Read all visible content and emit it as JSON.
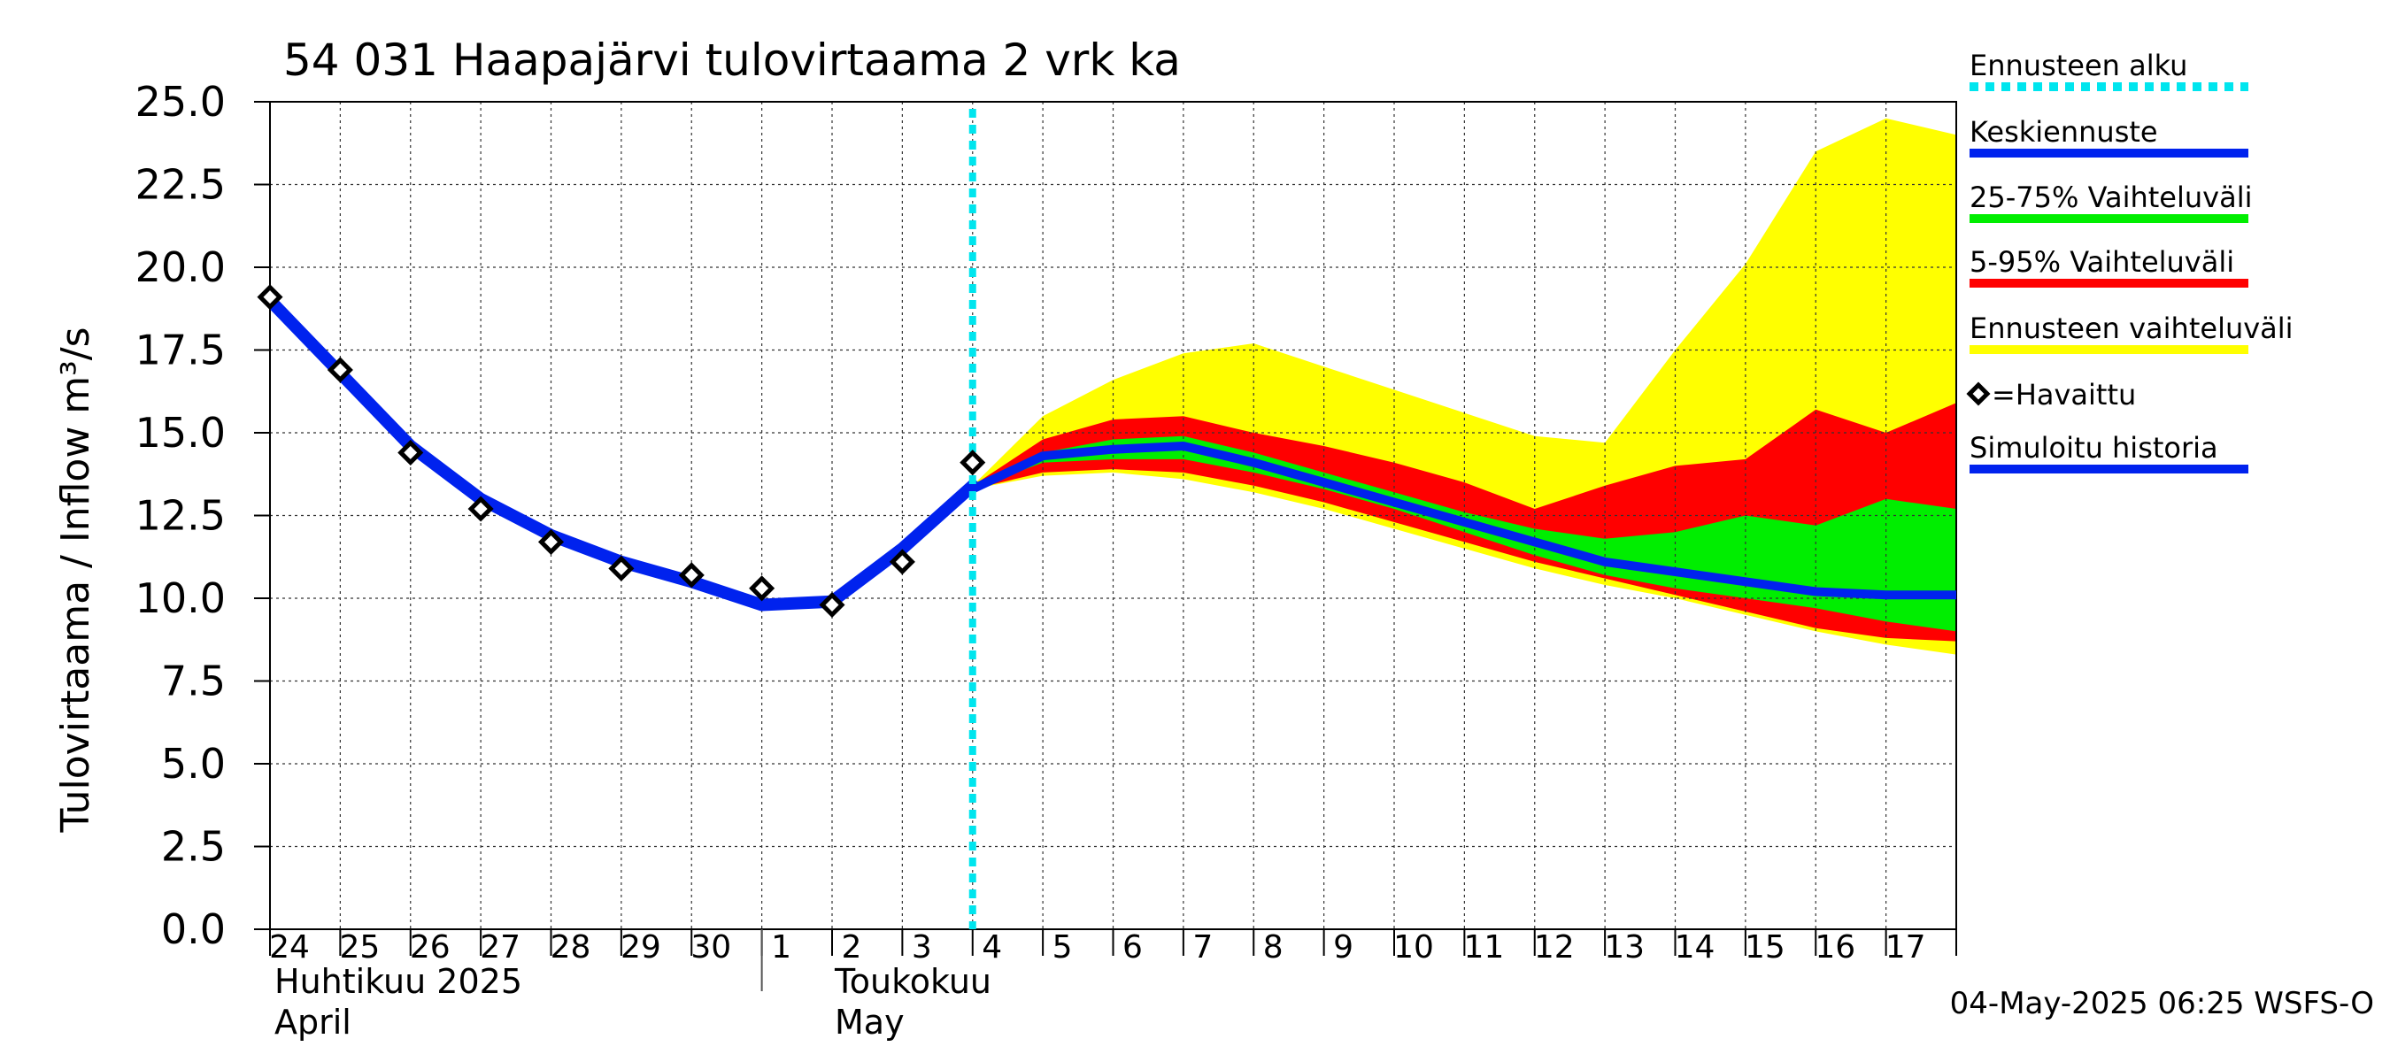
{
  "chart_data": {
    "type": "area",
    "title": "54 031 Haapajärvi tulovirtaama 2 vrk ka",
    "ylabel": "Tulovirtaama / Inflow   m³/s",
    "ylim": [
      0,
      25
    ],
    "yticks": [
      "0.0",
      "2.5",
      "5.0",
      "7.5",
      "10.0",
      "12.5",
      "15.0",
      "17.5",
      "20.0",
      "22.5",
      "25.0"
    ],
    "xlim": [
      0,
      24
    ],
    "day_labels": [
      "24",
      "25",
      "26",
      "27",
      "28",
      "29",
      "30",
      "1",
      "2",
      "3",
      "4",
      "5",
      "6",
      "7",
      "8",
      "9",
      "10",
      "11",
      "12",
      "13",
      "14",
      "15",
      "16",
      "17"
    ],
    "month_labels": {
      "april_fi": "Huhtikuu  2025",
      "april_en": "April",
      "may_fi": "Toukokuu",
      "may_en": "May"
    },
    "month_boundary_x": 7,
    "forecast_start_x": 10,
    "grid": true,
    "legend_position": "right",
    "legend": [
      {
        "key": "start",
        "label": "Ennusteen alku",
        "color": "#00e5ee",
        "style": "dotted"
      },
      {
        "key": "mean",
        "label": "Keskiennuste",
        "color": "#0022ee"
      },
      {
        "key": "p25_75",
        "label": "25-75% Vaihteluväli",
        "color": "#00ee00"
      },
      {
        "key": "p5_95",
        "label": "5-95% Vaihteluväli",
        "color": "#ff0000"
      },
      {
        "key": "range",
        "label": "Ennusteen vaihteluväli",
        "color": "#ffff00"
      },
      {
        "key": "observed",
        "label": "=Havaittu",
        "color": "#000000",
        "style": "diamond"
      },
      {
        "key": "sim",
        "label": "Simuloitu historia",
        "color": "#0022ee"
      }
    ],
    "observed": {
      "x": [
        0,
        1,
        2,
        3,
        4,
        5,
        6,
        7,
        8,
        9,
        10
      ],
      "y": [
        19.1,
        16.9,
        14.4,
        12.7,
        11.7,
        10.9,
        10.7,
        10.3,
        9.8,
        11.1,
        14.1
      ]
    },
    "simulated_history": {
      "x": [
        0,
        1,
        2,
        3,
        4,
        5,
        6,
        7,
        8,
        9,
        10
      ],
      "y": [
        19.0,
        16.8,
        14.6,
        13.0,
        11.9,
        11.1,
        10.5,
        9.8,
        9.9,
        11.5,
        13.4
      ]
    },
    "forecast": {
      "x": [
        10,
        11,
        12,
        13,
        14,
        15,
        16,
        17,
        18,
        19,
        20,
        21,
        22,
        23,
        24
      ],
      "range_max": [
        13.4,
        15.5,
        16.6,
        17.4,
        17.7,
        17.0,
        16.3,
        15.6,
        14.9,
        14.7,
        17.5,
        20.1,
        23.5,
        24.5,
        24.0
      ],
      "range_min": [
        13.3,
        13.7,
        13.8,
        13.6,
        13.2,
        12.7,
        12.1,
        11.5,
        10.9,
        10.4,
        10.0,
        9.5,
        9.0,
        8.6,
        8.3
      ],
      "p95": [
        13.4,
        14.8,
        15.4,
        15.5,
        15.0,
        14.6,
        14.1,
        13.5,
        12.7,
        13.4,
        14.0,
        14.2,
        15.7,
        15.0,
        15.9
      ],
      "p5": [
        13.3,
        13.8,
        13.9,
        13.8,
        13.4,
        12.9,
        12.3,
        11.7,
        11.1,
        10.6,
        10.1,
        9.6,
        9.1,
        8.8,
        8.7
      ],
      "p75": [
        13.4,
        14.4,
        14.8,
        14.9,
        14.4,
        13.8,
        13.2,
        12.6,
        12.1,
        11.8,
        12.0,
        12.5,
        12.2,
        13.0,
        12.7
      ],
      "p25": [
        13.3,
        14.1,
        14.2,
        14.2,
        13.8,
        13.3,
        12.7,
        12.0,
        11.3,
        10.7,
        10.3,
        10.0,
        9.7,
        9.3,
        9.0
      ],
      "mean": [
        13.3,
        14.3,
        14.5,
        14.6,
        14.1,
        13.5,
        12.9,
        12.3,
        11.7,
        11.1,
        10.8,
        10.5,
        10.2,
        10.1,
        10.1
      ]
    }
  },
  "footer": {
    "timestamp": "04-May-2025 06:25 WSFS-O"
  }
}
